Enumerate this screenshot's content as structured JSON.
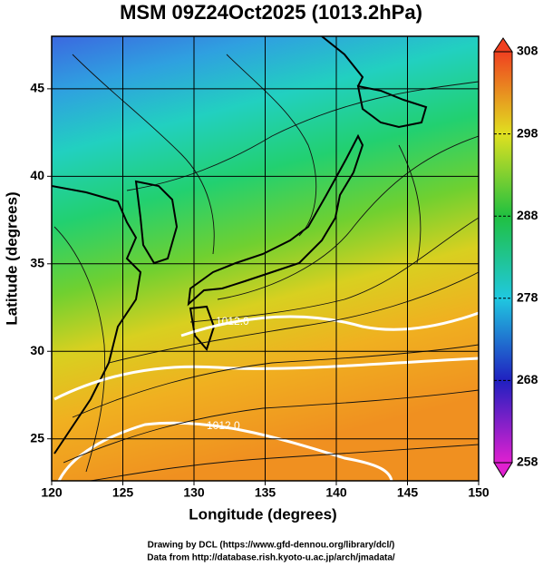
{
  "chart_data": {
    "type": "map",
    "title": "MSM 09Z24Oct2025 (1013.2hPa)",
    "xlabel": "Longitude (degrees)",
    "ylabel": "Latitude  (degrees)",
    "xlim": [
      120,
      150
    ],
    "xticks": [
      120,
      125,
      130,
      135,
      140,
      145,
      150
    ],
    "ylim": [
      22.6,
      48
    ],
    "yticks": [
      25,
      30,
      35,
      40,
      45
    ],
    "grid": true,
    "colorbar": {
      "lim": [
        258,
        308
      ],
      "ticks": [
        258,
        268,
        278,
        288,
        298,
        308
      ]
    },
    "annotations": [
      "1012.0",
      "1012.0"
    ],
    "credits": [
      "Drawing by DCL (https://www.gfd-dennou.org/library/dcl/)",
      "Data from http://database.rish.kyoto-u.ac.jp/arch/jmadata/"
    ]
  }
}
